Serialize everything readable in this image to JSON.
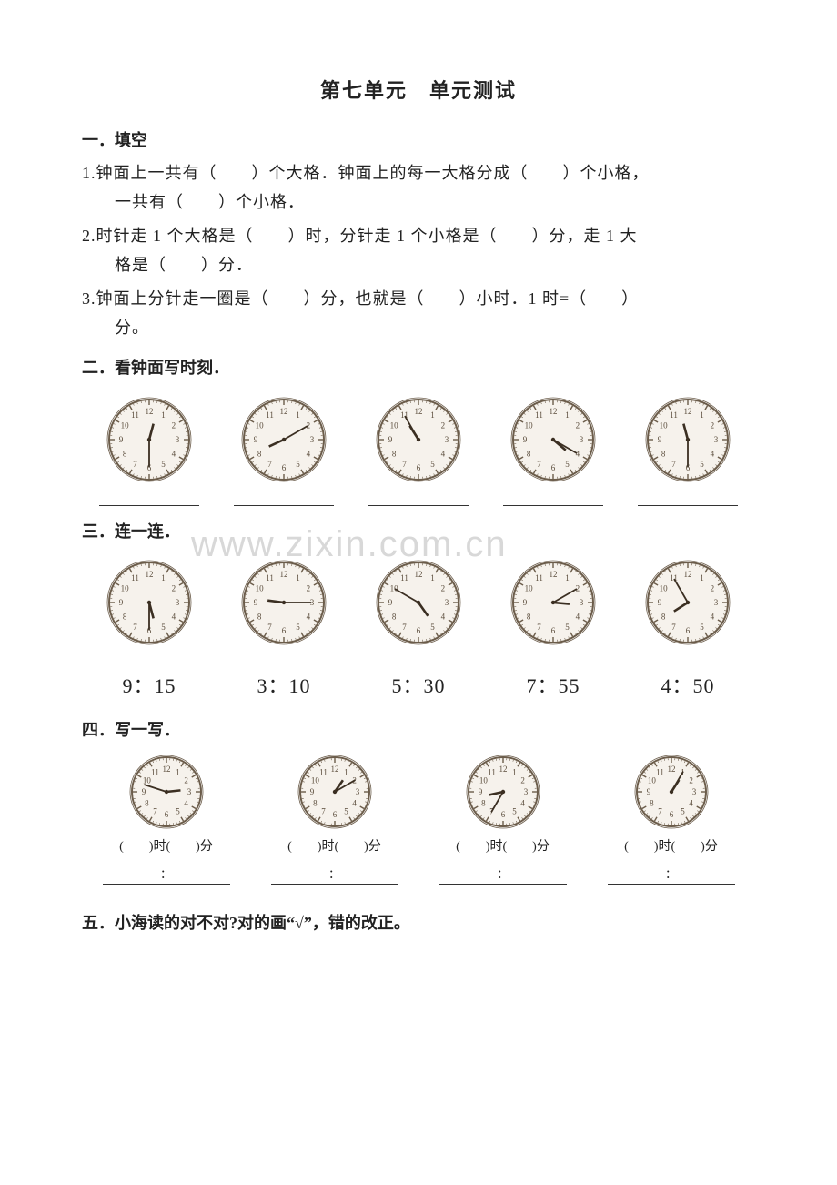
{
  "title": "第七单元　单元测试",
  "sections": {
    "s1": {
      "head": "一．填空",
      "q1a": "1.钟面上一共有（　　）个大格．钟面上的每一大格分成（　　）个小格，",
      "q1b": "一共有（　　）个小格．",
      "q2a": "2.时针走 1 个大格是（　　）时，分针走 1 个小格是（　　）分，走 1 大",
      "q2b": "格是（　　）分．",
      "q3a": "3.钟面上分针走一圈是（　　）分，也就是（　　）小时．1 时=（　　）",
      "q3b": "分。"
    },
    "s2": {
      "head": "二．看钟面写时刻．",
      "clocks": [
        {
          "hour": 12,
          "minute": 30
        },
        {
          "hour": 8,
          "minute": 10
        },
        {
          "hour": 10,
          "minute": 55
        },
        {
          "hour": 4,
          "minute": 20
        },
        {
          "hour": 11,
          "minute": 30
        }
      ]
    },
    "s3": {
      "head": "三．连一连．",
      "clocks": [
        {
          "hour": 5,
          "minute": 30
        },
        {
          "hour": 9,
          "minute": 15
        },
        {
          "hour": 4,
          "minute": 50
        },
        {
          "hour": 3,
          "minute": 10
        },
        {
          "hour": 7,
          "minute": 55
        }
      ],
      "labels": [
        "9：15",
        "3：10",
        "5：30",
        "7：55",
        "4：50"
      ]
    },
    "s4": {
      "head": "四．写一写．",
      "clocks": [
        {
          "hour": 2,
          "minute": 48
        },
        {
          "hour": 1,
          "minute": 10
        },
        {
          "hour": 8,
          "minute": 35
        },
        {
          "hour": 1,
          "minute": 5
        }
      ],
      "blank_shi": "时",
      "blank_fen": "分",
      "paren_l": "(",
      "paren_r": ")",
      "colon": "："
    },
    "s5": {
      "head": "五．小海读的对不对?对的画“√”，错的改正。"
    }
  },
  "clock_style": {
    "radius": 44,
    "bg": "#f6f2ec",
    "stroke": "#6b5c4a",
    "stroke_w": 2,
    "num_font": 9,
    "num_color": "#5a4c3b",
    "tick_color": "#6b5c4a",
    "hour_len": 18,
    "min_len": 30,
    "hand_color": "#3b2f22"
  },
  "watermark": "www.zixin.com.cn"
}
